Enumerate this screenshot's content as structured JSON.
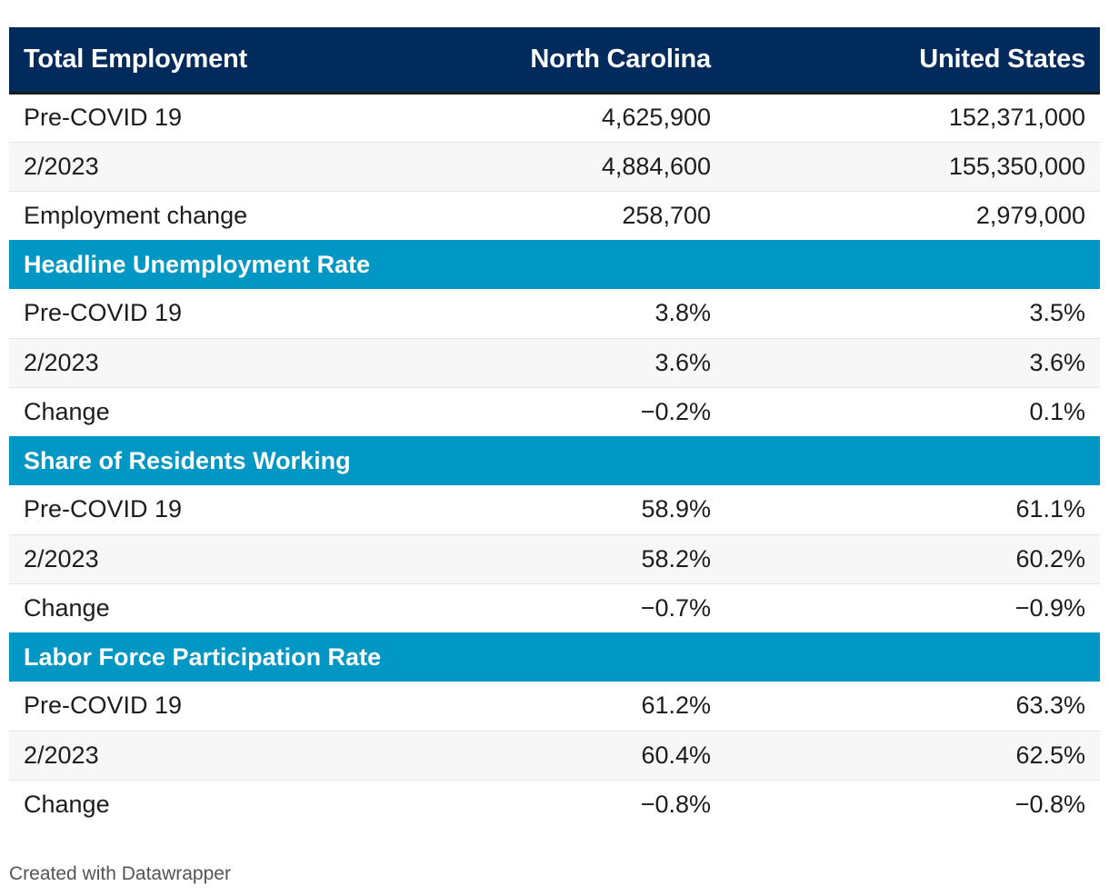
{
  "chart_data": {
    "type": "table",
    "columns": [
      "Total Employment",
      "North Carolina",
      "United States"
    ],
    "sections": [
      {
        "title": "Total Employment",
        "is_header": true,
        "rows": [
          {
            "label": "Pre-COVID 19",
            "nc": "4,625,900",
            "us": "152,371,000"
          },
          {
            "label": "2/2023",
            "nc": "4,884,600",
            "us": "155,350,000"
          },
          {
            "label": "Employment change",
            "nc": "258,700",
            "us": "2,979,000"
          }
        ]
      },
      {
        "title": "Headline Unemployment Rate",
        "rows": [
          {
            "label": "Pre-COVID 19",
            "nc": "3.8%",
            "us": "3.5%"
          },
          {
            "label": "2/2023",
            "nc": "3.6%",
            "us": "3.6%"
          },
          {
            "label": "Change",
            "nc": "−0.2%",
            "us": "0.1%"
          }
        ]
      },
      {
        "title": "Share of Residents Working",
        "rows": [
          {
            "label": "Pre-COVID 19",
            "nc": "58.9%",
            "us": "61.1%"
          },
          {
            "label": "2/2023",
            "nc": "58.2%",
            "us": "60.2%"
          },
          {
            "label": "Change",
            "nc": "−0.7%",
            "us": "−0.9%"
          }
        ]
      },
      {
        "title": "Labor Force Participation Rate",
        "rows": [
          {
            "label": "Pre-COVID 19",
            "nc": "61.2%",
            "us": "63.3%"
          },
          {
            "label": "2/2023",
            "nc": "60.4%",
            "us": "62.5%"
          },
          {
            "label": "Change",
            "nc": "−0.8%",
            "us": "−0.8%"
          }
        ]
      }
    ]
  },
  "colors": {
    "header_bg": "#002b5c",
    "section_bg": "#0097c4",
    "stripe_bg": "#f7f7f7"
  },
  "footer": {
    "credit": "Created with Datawrapper"
  }
}
